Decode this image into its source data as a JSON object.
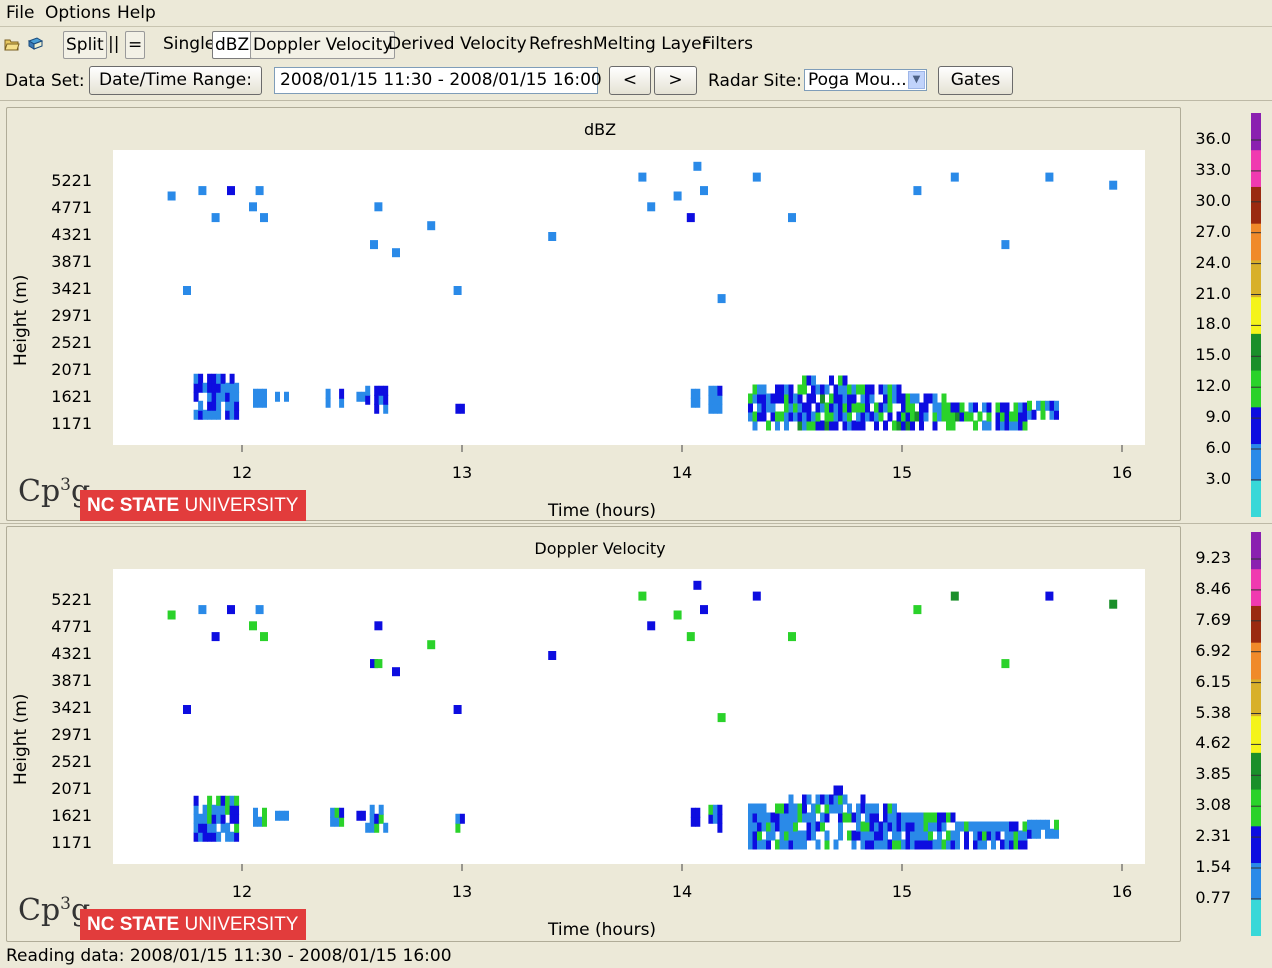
{
  "menu": {
    "file": "File",
    "options": "Options",
    "help": "Help"
  },
  "toolbar": {
    "icons": [
      "open-folder-icon",
      "book-icon"
    ],
    "split": "Split",
    "columns": "||",
    "rows": "=",
    "single": "Single",
    "dbz": "dBZ",
    "doppler": "Doppler Velocity",
    "derived": "Derived Velocity",
    "refresh": "Refresh",
    "melting": "Melting Layer",
    "filters": "Filters",
    "selected_tab": "dBZ"
  },
  "dataset": {
    "label": "Data Set:",
    "range_button": "Date/Time Range:",
    "range_value": "2008/01/15 11:30 - 2008/01/15 16:00",
    "prev": "<",
    "next": ">",
    "radar_label": "Radar Site:",
    "radar_value": "Poga Mou...",
    "gates": "Gates"
  },
  "logo": {
    "cp": "Cp",
    "sup": "3",
    "g": "g",
    "ncsu_bold": "NC STATE",
    "ncsu_rest": " UNIVERSITY"
  },
  "status": "Reading data: 2008/01/15 11:30 - 2008/01/15 16:00",
  "colors": {
    "lightblue": "#2a8ae8",
    "blue": "#0d0de0",
    "green": "#2ad22a",
    "darkgreen": "#1a8f2a",
    "colorbar": [
      "#38d8d8",
      "#2a8ae8",
      "#0d0de0",
      "#2ad22a",
      "#1a8f2a",
      "#f4f41a",
      "#d8b02a",
      "#f08a2a",
      "#9a2a10",
      "#f03ab0",
      "#8a20b0"
    ]
  },
  "chart_data": [
    {
      "type": "heatmap",
      "title": "dBZ",
      "xlabel": "Time (hours)",
      "ylabel": "Height (m)",
      "x_ticks": [
        "12",
        "13",
        "14",
        "15",
        "16"
      ],
      "y_ticks": [
        "5221",
        "4771",
        "4321",
        "3871",
        "3421",
        "2971",
        "2521",
        "2071",
        "1621",
        "1171"
      ],
      "xlim": [
        11.5,
        16.1
      ],
      "ylim": [
        900,
        5800
      ],
      "colorbar_labels": [
        "36.0",
        "33.0",
        "30.0",
        "27.0",
        "24.0",
        "21.0",
        "18.0",
        "15.0",
        "12.0",
        "9.0",
        "6.0",
        "3.0"
      ],
      "points": [
        [
          11.68,
          4996,
          "lightblue"
        ],
        [
          11.75,
          3421,
          "lightblue"
        ],
        [
          11.82,
          5086,
          "lightblue"
        ],
        [
          11.88,
          4636,
          "lightblue"
        ],
        [
          11.95,
          5086,
          "blue"
        ],
        [
          12.05,
          4816,
          "lightblue"
        ],
        [
          12.08,
          5086,
          "lightblue"
        ],
        [
          12.1,
          4636,
          "lightblue"
        ],
        [
          12.6,
          4186,
          "lightblue"
        ],
        [
          12.62,
          4816,
          "lightblue"
        ],
        [
          12.7,
          4051,
          "lightblue"
        ],
        [
          12.86,
          4501,
          "lightblue"
        ],
        [
          12.98,
          3421,
          "lightblue"
        ],
        [
          13.41,
          4321,
          "lightblue"
        ],
        [
          13.82,
          5311,
          "lightblue"
        ],
        [
          13.86,
          4816,
          "lightblue"
        ],
        [
          13.98,
          4996,
          "lightblue"
        ],
        [
          14.04,
          4636,
          "blue"
        ],
        [
          14.07,
          5491,
          "lightblue"
        ],
        [
          14.1,
          5086,
          "lightblue"
        ],
        [
          14.18,
          3286,
          "lightblue"
        ],
        [
          14.34,
          5311,
          "lightblue"
        ],
        [
          14.5,
          4636,
          "lightblue"
        ],
        [
          15.07,
          5086,
          "lightblue"
        ],
        [
          15.24,
          5311,
          "lightblue"
        ],
        [
          15.47,
          4186,
          "lightblue"
        ],
        [
          15.67,
          5311,
          "lightblue"
        ],
        [
          15.96,
          5176,
          "lightblue"
        ]
      ],
      "clusters": [
        [
          11.78,
          11.98,
          1350,
          2000,
          "mix"
        ],
        [
          12.05,
          12.1,
          1550,
          1800,
          "lightblue"
        ],
        [
          12.15,
          12.2,
          1650,
          1700,
          "lightblue"
        ],
        [
          12.38,
          12.45,
          1550,
          1800,
          "mix"
        ],
        [
          12.52,
          12.56,
          1650,
          1700,
          "lightblue"
        ],
        [
          12.56,
          12.65,
          1450,
          1800,
          "mix"
        ],
        [
          12.97,
          13.0,
          1450,
          1700,
          "mix"
        ],
        [
          14.04,
          14.07,
          1550,
          1800,
          "lightblue"
        ],
        [
          14.12,
          14.18,
          1450,
          1800,
          "mix"
        ],
        [
          14.3,
          15.7,
          1171,
          2150,
          "storm"
        ]
      ]
    },
    {
      "type": "heatmap",
      "title": "Doppler Velocity",
      "xlabel": "Time (hours)",
      "ylabel": "Height (m)",
      "x_ticks": [
        "12",
        "13",
        "14",
        "15",
        "16"
      ],
      "y_ticks": [
        "5221",
        "4771",
        "4321",
        "3871",
        "3421",
        "2971",
        "2521",
        "2071",
        "1621",
        "1171"
      ],
      "xlim": [
        11.5,
        16.1
      ],
      "ylim": [
        900,
        5800
      ],
      "colorbar_labels": [
        "9.23",
        "8.46",
        "7.69",
        "6.92",
        "6.15",
        "5.38",
        "4.62",
        "3.85",
        "3.08",
        "2.31",
        "1.54",
        "0.77"
      ],
      "points": [
        [
          11.68,
          4996,
          "green"
        ],
        [
          11.75,
          3421,
          "blue"
        ],
        [
          11.82,
          5086,
          "lightblue"
        ],
        [
          11.88,
          4636,
          "blue"
        ],
        [
          11.95,
          5086,
          "blue"
        ],
        [
          12.05,
          4816,
          "green"
        ],
        [
          12.08,
          5086,
          "lightblue"
        ],
        [
          12.1,
          4636,
          "green"
        ],
        [
          12.6,
          4186,
          "blue"
        ],
        [
          12.62,
          4186,
          "green"
        ],
        [
          12.62,
          4816,
          "blue"
        ],
        [
          12.7,
          4051,
          "blue"
        ],
        [
          12.86,
          4501,
          "green"
        ],
        [
          12.98,
          3421,
          "blue"
        ],
        [
          13.41,
          4321,
          "blue"
        ],
        [
          13.82,
          5311,
          "green"
        ],
        [
          13.86,
          4816,
          "blue"
        ],
        [
          13.98,
          4996,
          "green"
        ],
        [
          14.04,
          4636,
          "green"
        ],
        [
          14.07,
          5491,
          "blue"
        ],
        [
          14.1,
          5086,
          "blue"
        ],
        [
          14.18,
          3286,
          "green"
        ],
        [
          14.34,
          5311,
          "blue"
        ],
        [
          14.5,
          4636,
          "green"
        ],
        [
          15.07,
          5086,
          "green"
        ],
        [
          15.24,
          5311,
          "darkgreen"
        ],
        [
          15.47,
          4186,
          "green"
        ],
        [
          15.67,
          5311,
          "blue"
        ],
        [
          15.96,
          5176,
          "darkgreen"
        ]
      ],
      "clusters": [
        [
          11.78,
          11.98,
          1300,
          2000,
          "mix2"
        ],
        [
          12.05,
          12.1,
          1550,
          1800,
          "mix2"
        ],
        [
          12.15,
          12.2,
          1650,
          1700,
          "lightblue"
        ],
        [
          12.38,
          12.45,
          1550,
          1800,
          "mix2"
        ],
        [
          12.52,
          12.56,
          1650,
          1700,
          "blue"
        ],
        [
          12.56,
          12.65,
          1450,
          1800,
          "mix2"
        ],
        [
          12.97,
          13.0,
          1450,
          1700,
          "mix2"
        ],
        [
          14.04,
          14.07,
          1550,
          1800,
          "blue"
        ],
        [
          14.12,
          14.18,
          1450,
          1800,
          "mix2"
        ],
        [
          14.3,
          15.7,
          1171,
          2200,
          "storm2"
        ]
      ]
    }
  ]
}
